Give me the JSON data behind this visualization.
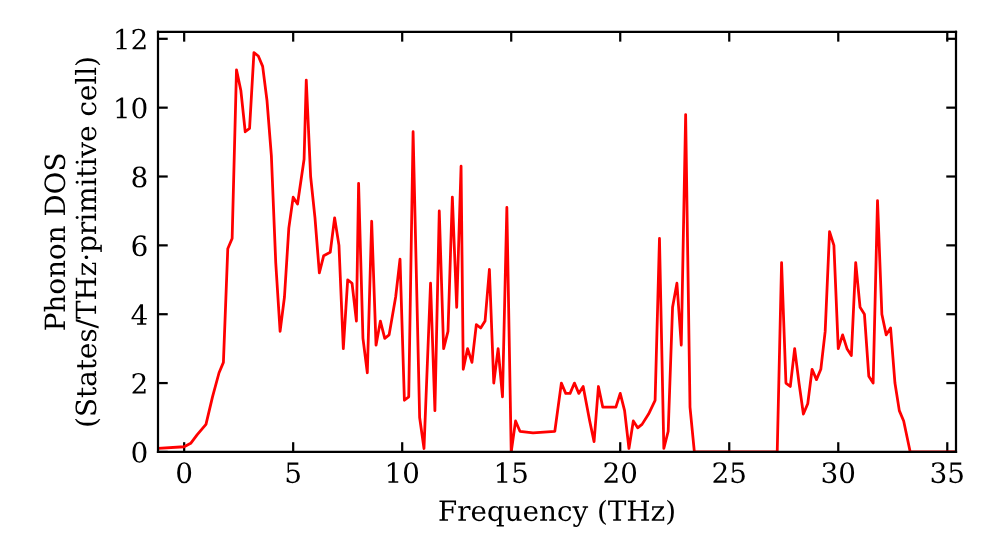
{
  "chart_data": {
    "type": "line",
    "xlabel": "Frequency (THz)",
    "ylabel": "Phonon DOS\n(States/THz·primitive cell)",
    "xlim": [
      -1.2,
      35.4
    ],
    "ylim": [
      0,
      12.2
    ],
    "xticks": [
      0,
      5,
      10,
      15,
      20,
      25,
      30,
      35
    ],
    "yticks": [
      0,
      2,
      4,
      6,
      8,
      10,
      12
    ],
    "grid": false,
    "legend": false,
    "series": [
      {
        "color": "#ff0000",
        "x": [
          -1.2,
          0,
          0.3,
          0.6,
          1.0,
          1.3,
          1.6,
          1.8,
          2.0,
          2.2,
          2.4,
          2.6,
          2.8,
          3.0,
          3.2,
          3.4,
          3.6,
          3.8,
          4.0,
          4.2,
          4.4,
          4.6,
          4.8,
          5.0,
          5.2,
          5.5,
          5.6,
          5.8,
          6.0,
          6.2,
          6.4,
          6.7,
          6.9,
          7.1,
          7.3,
          7.5,
          7.7,
          7.9,
          8.0,
          8.2,
          8.4,
          8.6,
          8.8,
          9.0,
          9.2,
          9.4,
          9.7,
          9.9,
          10.1,
          10.3,
          10.5,
          10.8,
          11.0,
          11.3,
          11.5,
          11.7,
          11.9,
          12.1,
          12.3,
          12.5,
          12.7,
          12.8,
          13.0,
          13.2,
          13.4,
          13.6,
          13.8,
          14.0,
          14.2,
          14.4,
          14.6,
          14.8,
          15.0,
          15.2,
          15.4,
          16.0,
          17.0,
          17.3,
          17.5,
          17.7,
          17.9,
          18.1,
          18.3,
          18.6,
          18.8,
          19.0,
          19.2,
          19.5,
          19.8,
          20.0,
          20.2,
          20.4,
          20.6,
          20.8,
          21.0,
          21.3,
          21.6,
          21.8,
          22.0,
          22.2,
          22.4,
          22.6,
          22.8,
          23.0,
          23.2,
          23.4,
          27.2,
          27.4,
          27.6,
          27.8,
          28.0,
          28.2,
          28.4,
          28.6,
          28.8,
          29.0,
          29.2,
          29.4,
          29.6,
          29.8,
          30.0,
          30.2,
          30.4,
          30.6,
          30.8,
          31.0,
          31.2,
          31.4,
          31.6,
          31.8,
          32.0,
          32.2,
          32.4,
          32.6,
          32.8,
          33.0,
          33.3,
          35.4
        ],
        "values": [
          0.1,
          0.15,
          0.25,
          0.5,
          0.8,
          1.6,
          2.3,
          2.6,
          5.9,
          6.2,
          11.1,
          10.5,
          9.3,
          9.4,
          11.6,
          11.5,
          11.2,
          10.2,
          8.6,
          5.5,
          3.5,
          4.5,
          6.5,
          7.4,
          7.2,
          8.5,
          10.8,
          8.0,
          6.8,
          5.2,
          5.7,
          5.8,
          6.8,
          6.0,
          3.0,
          5.0,
          4.9,
          3.8,
          7.8,
          3.3,
          2.3,
          6.7,
          3.1,
          3.8,
          3.3,
          3.4,
          4.5,
          5.6,
          1.5,
          1.6,
          9.3,
          1.0,
          0.1,
          4.9,
          1.2,
          7.0,
          3.0,
          3.5,
          7.4,
          4.2,
          8.3,
          2.4,
          3.0,
          2.6,
          3.7,
          3.6,
          3.8,
          5.3,
          2.0,
          3.0,
          1.6,
          7.1,
          0.0,
          0.9,
          0.6,
          0.55,
          0.6,
          2.0,
          1.7,
          1.7,
          2.0,
          1.7,
          1.9,
          0.9,
          0.3,
          1.9,
          1.3,
          1.3,
          1.3,
          1.7,
          1.2,
          0.1,
          0.9,
          0.7,
          0.8,
          1.1,
          1.5,
          6.2,
          0.1,
          0.6,
          4.2,
          4.9,
          3.1,
          9.8,
          1.3,
          0.0,
          0.0,
          5.5,
          2.0,
          1.9,
          3.0,
          2.0,
          1.1,
          1.4,
          2.4,
          2.1,
          2.4,
          3.5,
          6.4,
          6.0,
          3.0,
          3.4,
          3.0,
          2.8,
          5.5,
          4.2,
          4.0,
          2.2,
          2.0,
          7.3,
          4.0,
          3.4,
          3.6,
          2.0,
          1.2,
          0.9,
          0.0,
          0.0
        ]
      }
    ]
  }
}
